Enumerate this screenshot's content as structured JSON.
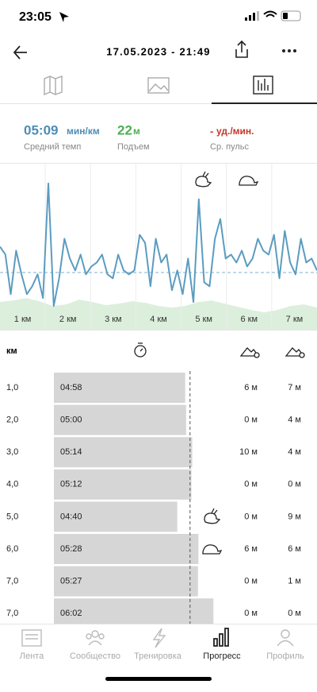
{
  "status": {
    "time": "23:05"
  },
  "header": {
    "title": "17.05.2023 - 21:49"
  },
  "stats": [
    {
      "value": {
        "value": 309,
        "label": "05:09"
      },
      "unit": "мин/км",
      "label": "Средний темп"
    },
    {
      "value": 22,
      "unit": "м",
      "label": "Подъем"
    },
    {
      "value": "-",
      "unit": "уд./мин.",
      "label": "Ср. пульс"
    }
  ],
  "chart": {
    "type": "line",
    "color": "#5b9cc0",
    "ylim": [
      0,
      210
    ],
    "values": [
      105,
      95,
      45,
      100,
      70,
      45,
      55,
      70,
      40,
      185,
      30,
      65,
      115,
      90,
      75,
      95,
      70,
      80,
      85,
      95,
      70,
      65,
      95,
      75,
      70,
      75,
      120,
      110,
      55,
      115,
      85,
      95,
      50,
      75,
      45,
      90,
      35,
      165,
      60,
      55,
      115,
      140,
      90,
      95,
      85,
      100,
      80,
      90,
      115,
      100,
      95,
      120,
      65,
      125,
      85,
      70,
      115,
      85,
      90,
      75
    ],
    "elevation": [
      35,
      37,
      40,
      36,
      30,
      32,
      38,
      35,
      31,
      33,
      36,
      34,
      30,
      28,
      30,
      35,
      37,
      33,
      29,
      25,
      22,
      25,
      30,
      32,
      28
    ],
    "categories": [
      "1 км",
      "2 км",
      "3 км",
      "4 км",
      "5 км",
      "6 км",
      "7 км"
    ]
  },
  "table": {
    "header": {
      "km": "км"
    },
    "rows": [
      {
        "km": "1,0",
        "pace": {
          "value": 298,
          "label": "04:58"
        },
        "ascent": "6 м",
        "descent": "7 м"
      },
      {
        "km": "2,0",
        "pace": {
          "value": 300,
          "label": "05:00"
        },
        "ascent": "0 м",
        "descent": "4 м"
      },
      {
        "km": "3,0",
        "pace": {
          "value": 314,
          "label": "05:14"
        },
        "ascent": "10 м",
        "descent": "4 м"
      },
      {
        "km": "4,0",
        "pace": {
          "value": 312,
          "label": "05:12"
        },
        "ascent": "0 м",
        "descent": "0 м"
      },
      {
        "km": "5,0",
        "pace": {
          "value": 280,
          "label": "04:40"
        },
        "ascent": "0 м",
        "descent": "9 м"
      },
      {
        "km": "6,0",
        "pace": {
          "value": 328,
          "label": "05:28"
        },
        "ascent": "6 м",
        "descent": "6 м"
      },
      {
        "km": "7,0",
        "pace": {
          "value": 327,
          "label": "05:27"
        },
        "ascent": "0 м",
        "descent": "1 м"
      },
      {
        "km": "7,0",
        "pace": {
          "value": 362,
          "label": "06:02"
        },
        "ascent": "0 м",
        "descent": "0 м"
      }
    ]
  },
  "nav": [
    "Лента",
    "Сообщество",
    "Тренировка",
    "Прогресс",
    "Профиль"
  ]
}
